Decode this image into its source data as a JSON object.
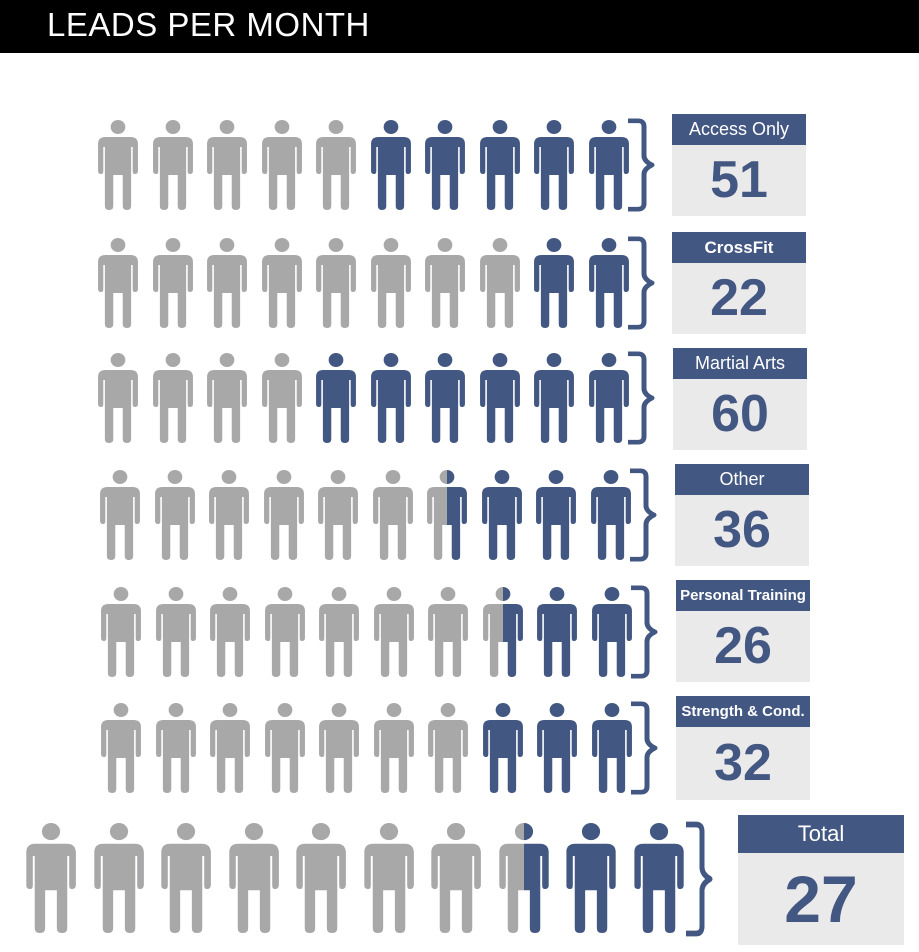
{
  "header": {
    "title": "LEADS PER MONTH"
  },
  "colors": {
    "filled": "#435783",
    "empty": "#a8a8a9",
    "header_bg": "#000000",
    "card_bg": "#ebeaea"
  },
  "icons": {
    "person": "person-icon",
    "brace": "right-curly-brace-icon"
  },
  "chart_data": {
    "type": "pictogram",
    "icons_per_row": 10,
    "categories": [
      "Access Only",
      "CrossFit",
      "Martial Arts",
      "Other",
      "Personal Training",
      "Strength & Cond.",
      "Total"
    ],
    "values": [
      51,
      22,
      60,
      36,
      26,
      32,
      27
    ],
    "filled_icons": [
      5,
      2,
      6,
      3.5,
      2.5,
      3,
      2.5
    ]
  }
}
